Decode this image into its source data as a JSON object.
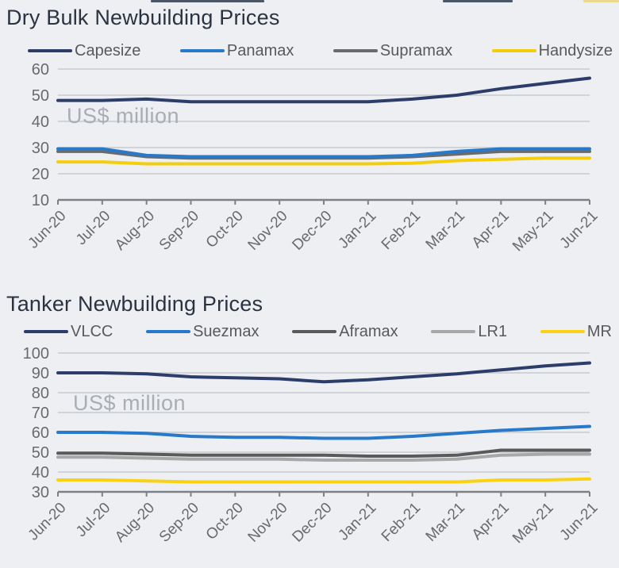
{
  "page": {
    "background_color": "#edeff2",
    "text_gray": "#595959",
    "axis_label_gray": "#6a6a6a",
    "gridline_color": "#c7cacf",
    "axis_line_color": "#7d8085",
    "watermark_color": "#a9aeb5"
  },
  "chart_data": [
    {
      "type": "line",
      "title": "Dry Bulk Newbuilding Prices",
      "watermark": "US$ million",
      "y_units": "US$ million",
      "legend_position": "top",
      "grid": "horizontal",
      "ylim": [
        10,
        60
      ],
      "ytick_step": 10,
      "x_categories": [
        "Jun-20",
        "Jul-20",
        "Aug-20",
        "Sep-20",
        "Oct-20",
        "Nov-20",
        "Dec-20",
        "Jan-21",
        "Feb-21",
        "Mar-21",
        "Apr-21",
        "May-21",
        "Jun-21"
      ],
      "series": [
        {
          "name": "Capesize",
          "color": "#2d3d6b",
          "values": [
            48,
            48,
            48.5,
            47.5,
            47.5,
            47.5,
            47.5,
            47.5,
            48.5,
            50,
            52.5,
            54.5,
            56.5
          ]
        },
        {
          "name": "Panamax",
          "color": "#2879c9",
          "values": [
            29.5,
            29.5,
            27,
            26.5,
            26.5,
            26.5,
            26.5,
            26.5,
            27,
            28.5,
            29.5,
            29.5,
            29.5
          ]
        },
        {
          "name": "Supramax",
          "color": "#6a6a6a",
          "values": [
            28.5,
            28.5,
            26.5,
            26,
            26,
            26,
            26,
            26,
            26.5,
            27.5,
            28.5,
            28.5,
            28.5
          ]
        },
        {
          "name": "Handysize",
          "color": "#f5ce0b",
          "values": [
            24.5,
            24.5,
            23.8,
            23.8,
            23.8,
            23.8,
            23.8,
            23.8,
            24,
            25,
            25.5,
            26,
            26
          ]
        }
      ]
    },
    {
      "type": "line",
      "title": "Tanker Newbuilding Prices",
      "watermark": "US$ million",
      "y_units": "US$ million",
      "legend_position": "top",
      "grid": "horizontal",
      "ylim": [
        30,
        100
      ],
      "ytick_step": 10,
      "x_categories": [
        "Jun-20",
        "Jul-20",
        "Aug-20",
        "Sep-20",
        "Oct-20",
        "Nov-20",
        "Dec-20",
        "Jan-21",
        "Feb-21",
        "Mar-21",
        "Apr-21",
        "May-21",
        "Jun-21"
      ],
      "series": [
        {
          "name": "VLCC",
          "color": "#2d3d6b",
          "values": [
            90,
            90,
            89.5,
            88,
            87.5,
            87,
            85.5,
            86.5,
            88,
            89.5,
            91.5,
            93.5,
            95
          ]
        },
        {
          "name": "Suezmax",
          "color": "#2879c9",
          "values": [
            60,
            60,
            59.5,
            58,
            57.5,
            57.5,
            57,
            57,
            58,
            59.5,
            61,
            62,
            63
          ]
        },
        {
          "name": "Aframax",
          "color": "#5a5a5a",
          "values": [
            49.5,
            49.5,
            49,
            48.5,
            48.5,
            48.5,
            48.5,
            48,
            48,
            48.5,
            51,
            51,
            51
          ]
        },
        {
          "name": "LR1",
          "color": "#a8a8a8",
          "values": [
            47.5,
            47.5,
            47,
            46.5,
            46.5,
            46.5,
            46,
            46,
            46,
            46.5,
            48.5,
            49,
            49
          ]
        },
        {
          "name": "MR",
          "color": "#f9d313",
          "values": [
            36,
            36,
            35.5,
            35,
            35,
            35,
            35,
            35,
            35,
            35,
            36,
            36,
            36.5
          ]
        }
      ]
    }
  ]
}
